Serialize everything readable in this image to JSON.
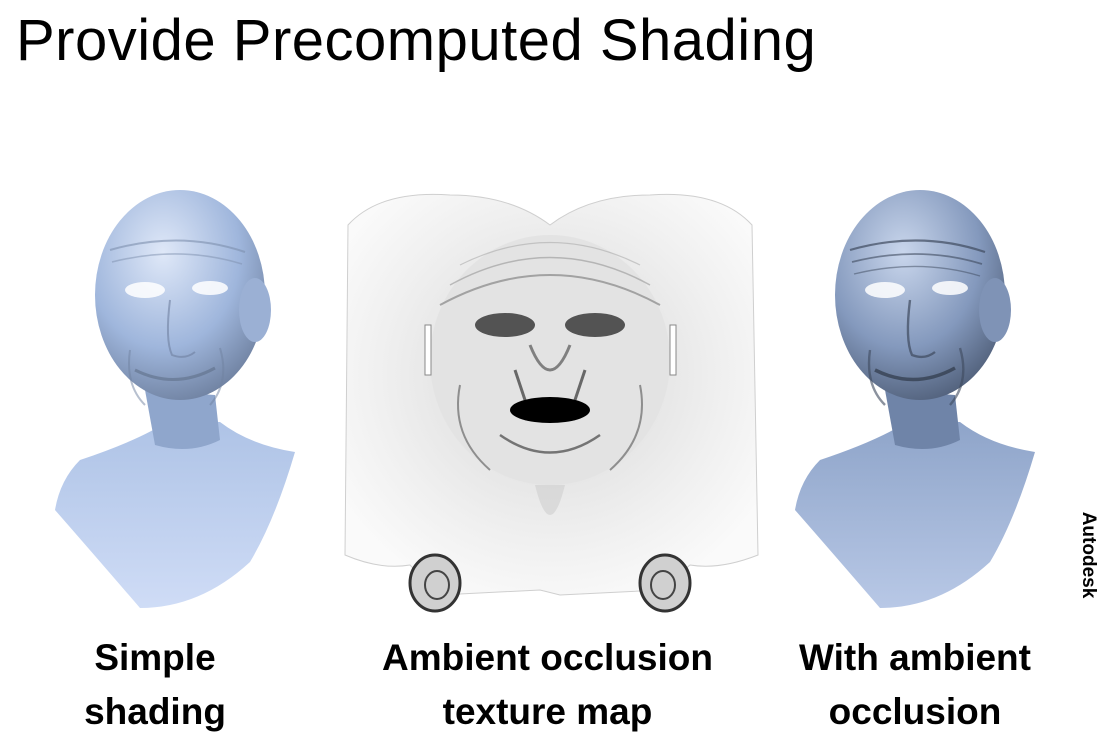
{
  "slide": {
    "title": "Provide Precomputed Shading",
    "credit": "Autodesk"
  },
  "figures": [
    {
      "caption_line1": "Simple",
      "caption_line2": "shading"
    },
    {
      "caption_line1": "Ambient occlusion",
      "caption_line2": "texture map"
    },
    {
      "caption_line1": "With ambient",
      "caption_line2": "occlusion"
    }
  ],
  "colors": {
    "skin_light": "#c6d6f2",
    "skin_mid": "#9fb6dc",
    "skin_dark": "#5f6f88",
    "ao_light": "#f2f2f2",
    "ao_dark": "#1a1a1a"
  }
}
